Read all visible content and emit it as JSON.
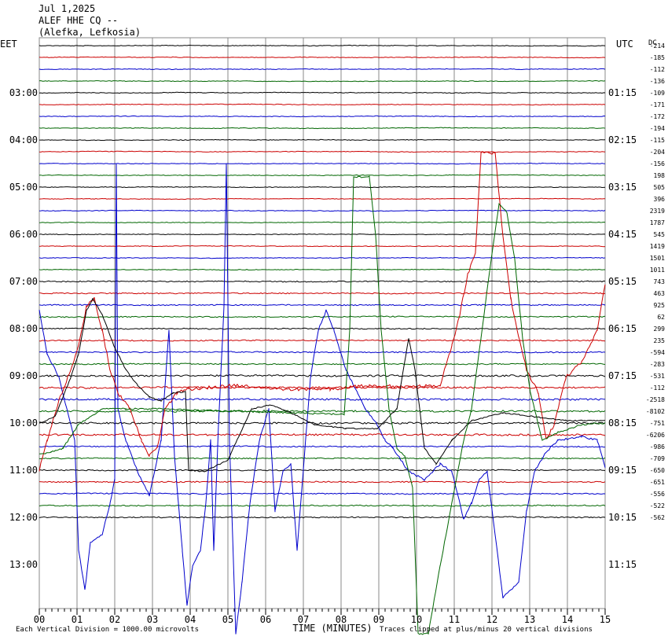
{
  "header": {
    "date": "Jul 1,2025",
    "station": "ALEF HHE CQ --",
    "location": "(Alefka, Lefkosia)"
  },
  "chart_data": {
    "type": "line",
    "title": "",
    "left_axis_title": "EET",
    "right_axis_title": "UTC",
    "offset_column_title": "DC",
    "xlabel": "TIME (MINUTES)",
    "x_ticks": [
      "00",
      "01",
      "02",
      "03",
      "04",
      "05",
      "06",
      "07",
      "08",
      "09",
      "10",
      "11",
      "12",
      "13",
      "14",
      "15"
    ],
    "xlim": [
      0,
      15
    ],
    "left_time_labels": [
      "03:00",
      "04:00",
      "05:00",
      "06:00",
      "07:00",
      "08:00",
      "09:00",
      "10:00",
      "11:00",
      "12:00",
      "13:00"
    ],
    "right_time_labels": [
      "01:15",
      "02:15",
      "03:15",
      "04:15",
      "05:15",
      "06:15",
      "07:15",
      "08:15",
      "09:15",
      "10:15",
      "11:15"
    ],
    "dc_offsets": [
      "-214",
      "-185",
      "-112",
      "-136",
      "-109",
      "-171",
      "-172",
      "-194",
      "-115",
      "-204",
      "-156",
      "198",
      "505",
      "396",
      "2319",
      "1787",
      "545",
      "1419",
      "1501",
      "1011",
      "743",
      "463",
      "925",
      "62",
      "299",
      "235",
      "-594",
      "-283",
      "-531",
      "-112",
      "-2518",
      "-8102",
      "-751",
      "-6206",
      "-986",
      "-709",
      "-650",
      "-651",
      "-556",
      "-522",
      "-562"
    ],
    "trace_colors": [
      "#000000",
      "#cc0000",
      "#0000cc",
      "#006600"
    ],
    "grid": true,
    "footer_left": "Each Vertical Division = 1000.00 microvolts",
    "footer_right": "Traces clipped at plus/minus 20 vertical divisions"
  }
}
